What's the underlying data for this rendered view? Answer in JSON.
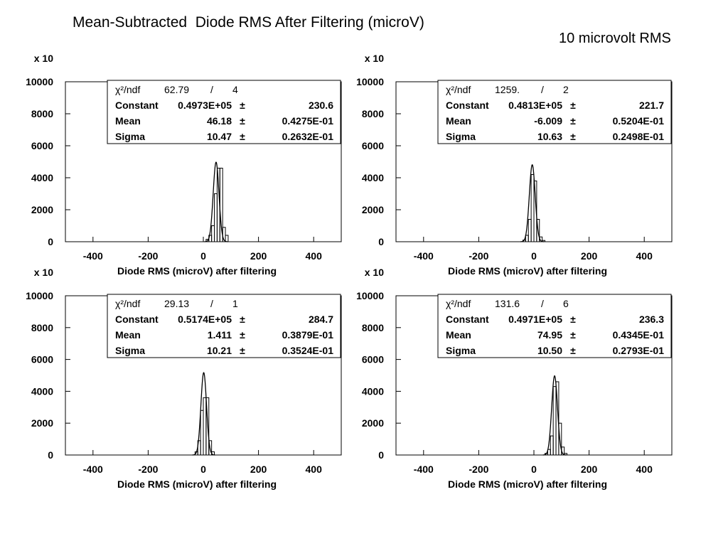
{
  "page": {
    "title": "Mean-Subtracted  Diode RMS After Filtering (microV)",
    "subtitle": "10 microvolt RMS"
  },
  "chart_data": [
    {
      "type": "histogram",
      "title": "",
      "xlabel": "Diode RMS (microV) after filtering",
      "ylabel": "",
      "y_multiplier_label": "x 10",
      "xlim": [
        -500,
        500
      ],
      "ylim": [
        0,
        10000
      ],
      "xticks": [
        -400,
        -200,
        0,
        200,
        400
      ],
      "yticks": [
        0,
        2000,
        4000,
        6000,
        8000,
        10000
      ],
      "grid": false,
      "stats_box": {
        "chi2_label": "χ²/ndf",
        "chi2": "62.79",
        "ndf_sep": "/",
        "ndf": "4",
        "constant_label": "Constant",
        "constant": "0.4973E+05",
        "constant_err": "230.6",
        "mean_label": "Mean",
        "mean": "46.18",
        "mean_err": "0.4275E-01",
        "sigma_label": "Sigma",
        "sigma": "10.47",
        "sigma_err": "0.2632E-01",
        "pm": "±"
      },
      "bins": {
        "edges": [
          10,
          20,
          30,
          40,
          50,
          60,
          70,
          80,
          90
        ],
        "counts": [
          150,
          400,
          1000,
          3000,
          4600,
          4600,
          900,
          400
        ]
      },
      "fit": {
        "constant": 4973,
        "mean": 46.18,
        "sigma": 10.47
      }
    },
    {
      "type": "histogram",
      "title": "",
      "xlabel": "Diode RMS (microV) after filtering",
      "ylabel": "",
      "y_multiplier_label": "x 10",
      "xlim": [
        -500,
        500
      ],
      "ylim": [
        0,
        10000
      ],
      "xticks": [
        -400,
        -200,
        0,
        200,
        400
      ],
      "yticks": [
        0,
        2000,
        4000,
        6000,
        8000,
        10000
      ],
      "grid": false,
      "stats_box": {
        "chi2_label": "χ²/ndf",
        "chi2": "1259.",
        "ndf_sep": "/",
        "ndf": "2",
        "constant_label": "Constant",
        "constant": "0.4813E+05",
        "constant_err": "221.7",
        "mean_label": "Mean",
        "mean": "-6.009",
        "mean_err": "0.5204E-01",
        "sigma_label": "Sigma",
        "sigma": "10.63",
        "sigma_err": "0.2498E-01",
        "pm": "±"
      },
      "bins": {
        "edges": [
          -40,
          -30,
          -20,
          -10,
          0,
          10,
          20,
          30,
          40
        ],
        "counts": [
          100,
          400,
          1400,
          4200,
          3800,
          1400,
          300,
          80
        ]
      },
      "fit": {
        "constant": 4813,
        "mean": -6.009,
        "sigma": 10.63
      }
    },
    {
      "type": "histogram",
      "title": "",
      "xlabel": "Diode RMS (microV) after filtering",
      "ylabel": "",
      "y_multiplier_label": "x 10",
      "xlim": [
        -500,
        500
      ],
      "ylim": [
        0,
        10000
      ],
      "xticks": [
        -400,
        -200,
        0,
        200,
        400
      ],
      "yticks": [
        0,
        2000,
        4000,
        6000,
        8000,
        10000
      ],
      "grid": false,
      "stats_box": {
        "chi2_label": "χ²/ndf",
        "chi2": "29.13",
        "ndf_sep": "/",
        "ndf": "1",
        "constant_label": "Constant",
        "constant": "0.5174E+05",
        "constant_err": "284.7",
        "mean_label": "Mean",
        "mean": "1.411",
        "mean_err": "0.3879E-01",
        "sigma_label": "Sigma",
        "sigma": "10.21",
        "sigma_err": "0.3524E-01",
        "pm": "±"
      },
      "bins": {
        "edges": [
          -30,
          -20,
          -10,
          0,
          10,
          20,
          30,
          40
        ],
        "counts": [
          200,
          900,
          2800,
          3600,
          3600,
          900,
          200
        ]
      },
      "fit": {
        "constant": 5174,
        "mean": 1.411,
        "sigma": 10.21
      }
    },
    {
      "type": "histogram",
      "title": "",
      "xlabel": "Diode RMS (microV) after filtering",
      "ylabel": "",
      "y_multiplier_label": "x 10",
      "xlim": [
        -500,
        500
      ],
      "ylim": [
        0,
        10000
      ],
      "xticks": [
        -400,
        -200,
        0,
        200,
        400
      ],
      "yticks": [
        0,
        2000,
        4000,
        6000,
        8000,
        10000
      ],
      "grid": false,
      "stats_box": {
        "chi2_label": "χ²/ndf",
        "chi2": "131.6",
        "ndf_sep": "/",
        "ndf": "6",
        "constant_label": "Constant",
        "constant": "0.4971E+05",
        "constant_err": "236.3",
        "mean_label": "Mean",
        "mean": "74.95",
        "mean_err": "0.4345E-01",
        "sigma_label": "Sigma",
        "sigma": "10.50",
        "sigma_err": "0.2793E-01",
        "pm": "±"
      },
      "bins": {
        "edges": [
          40,
          50,
          60,
          70,
          80,
          90,
          100,
          110,
          120
        ],
        "counts": [
          100,
          350,
          1200,
          4300,
          4600,
          2000,
          500,
          100
        ]
      },
      "fit": {
        "constant": 4971,
        "mean": 74.95,
        "sigma": 10.5
      }
    }
  ]
}
